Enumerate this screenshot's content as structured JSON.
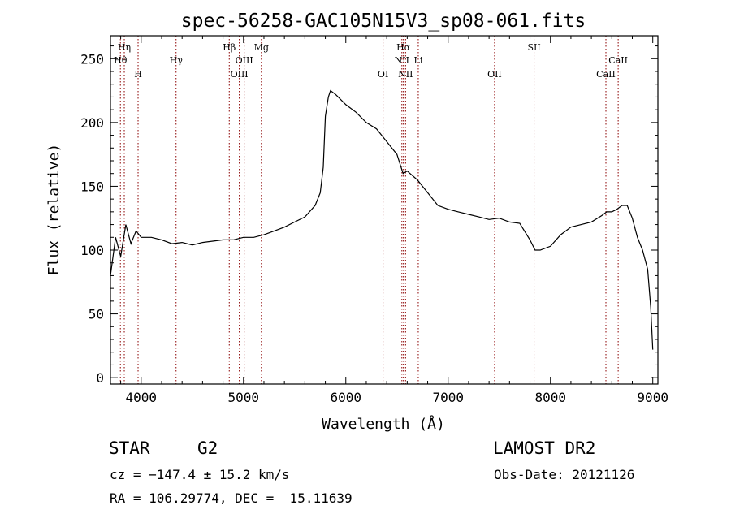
{
  "chart_data": {
    "type": "line",
    "title": "spec-56258-GAC105N15V3_sp08-061.fits",
    "xlabel": "Wavelength (Å)",
    "ylabel": "Flux (relative)",
    "xlim": [
      3700,
      9050
    ],
    "ylim": [
      -5,
      268
    ],
    "xticks": [
      4000,
      5000,
      6000,
      7000,
      8000,
      9000
    ],
    "yticks": [
      0,
      50,
      100,
      150,
      200,
      250
    ],
    "grid": false,
    "line_color": "#000000",
    "marker_color": "#8b0000",
    "series": [
      {
        "x": [
          3700,
          3750,
          3800,
          3850,
          3900,
          3950,
          4000,
          4100,
          4200,
          4300,
          4400,
          4500,
          4600,
          4700,
          4800,
          4900,
          5000,
          5100,
          5200,
          5300,
          5400,
          5500,
          5600,
          5700,
          5750,
          5780,
          5800,
          5830,
          5850,
          5900,
          6000,
          6100,
          6200,
          6300,
          6400,
          6500,
          6560,
          6600,
          6700,
          6800,
          6900,
          7000,
          7100,
          7200,
          7300,
          7400,
          7500,
          7600,
          7700,
          7800,
          7850,
          7900,
          8000,
          8100,
          8200,
          8300,
          8400,
          8500,
          8550,
          8600,
          8650,
          8700,
          8750,
          8800,
          8850,
          8900,
          8950,
          8980,
          9000
        ],
        "y": [
          80,
          110,
          95,
          120,
          105,
          115,
          110,
          110,
          108,
          105,
          106,
          104,
          106,
          107,
          108,
          108,
          110,
          110,
          112,
          115,
          118,
          122,
          126,
          135,
          145,
          165,
          205,
          220,
          225,
          222,
          214,
          208,
          200,
          195,
          185,
          175,
          160,
          162,
          155,
          145,
          135,
          132,
          130,
          128,
          126,
          124,
          125,
          122,
          121,
          108,
          100,
          100,
          103,
          112,
          118,
          120,
          122,
          127,
          130,
          130,
          132,
          135,
          135,
          125,
          110,
          100,
          85,
          55,
          22
        ]
      }
    ]
  },
  "spectral_lines": [
    {
      "label": "Hη",
      "wl": 3835,
      "row": 1
    },
    {
      "label": "Hθ",
      "wl": 3797,
      "row": 2
    },
    {
      "label": "H",
      "wl": 3970,
      "row": 3
    },
    {
      "label": "Hγ",
      "wl": 4341,
      "row": 2
    },
    {
      "label": "Hβ",
      "wl": 4861,
      "row": 1
    },
    {
      "label": "OIII",
      "wl": 4959,
      "row": 3
    },
    {
      "label": "OIII",
      "wl": 5007,
      "row": 2
    },
    {
      "label": "Mg",
      "wl": 5175,
      "row": 1
    },
    {
      "label": "OI",
      "wl": 6364,
      "row": 3
    },
    {
      "label": "Hα",
      "wl": 6563,
      "row": 1
    },
    {
      "label": "NII",
      "wl": 6548,
      "row": 2
    },
    {
      "label": "NII",
      "wl": 6584,
      "row": 3
    },
    {
      "label": "Li",
      "wl": 6708,
      "row": 2
    },
    {
      "label": "OII",
      "wl": 7454,
      "row": 3
    },
    {
      "label": "SII",
      "wl": 7840,
      "row": 1
    },
    {
      "label": "CaII",
      "wl": 8542,
      "row": 3
    },
    {
      "label": "CaII",
      "wl": 8662,
      "row": 2
    }
  ],
  "info": {
    "object_class": "STAR",
    "subclass": "G2",
    "survey": "LAMOST DR2",
    "redshift": "cz = −147.4 ± 15.2 km/s",
    "obs_date": "Obs-Date: 20121126",
    "coords": "RA = 106.29774, DEC =  15.11639"
  }
}
